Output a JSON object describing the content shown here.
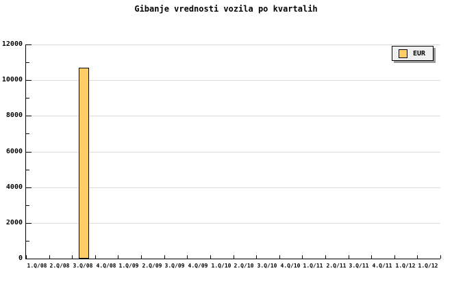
{
  "chart_data": {
    "type": "bar",
    "title": "Gibanje vrednosti vozila po kvartalih",
    "categories": [
      "1.Q/08",
      "2.Q/08",
      "3.Q/08",
      "4.Q/08",
      "1.Q/09",
      "2.Q/09",
      "3.Q/09",
      "4.Q/09",
      "1.Q/10",
      "2.Q/10",
      "3.Q/10",
      "4.Q/10",
      "1.Q/11",
      "2.Q/11",
      "3.Q/11",
      "4.Q/11",
      "1.Q/12",
      "1.Q/12"
    ],
    "series": [
      {
        "name": "EUR",
        "values": [
          null,
          null,
          10700,
          null,
          null,
          null,
          null,
          null,
          null,
          null,
          null,
          null,
          null,
          null,
          null,
          null,
          null,
          null
        ]
      }
    ],
    "xlabel": "",
    "ylabel": "",
    "ylim": [
      0,
      12000
    ],
    "ytick_major": 2000,
    "ytick_minor": 1000,
    "ytick_labels": [
      "0",
      "2000",
      "4000",
      "6000",
      "8000",
      "10000",
      "12000"
    ],
    "grid": true,
    "legend_position": "top-right",
    "colors": {
      "bar_fill": "#FFCC66",
      "bar_border": "#000000",
      "grid": "#DCDCDC",
      "axis": "#000000",
      "text": "#000000",
      "legend_bg": "#F0F0F0",
      "legend_shadow": "#999999",
      "background": "#FFFFFF"
    }
  }
}
